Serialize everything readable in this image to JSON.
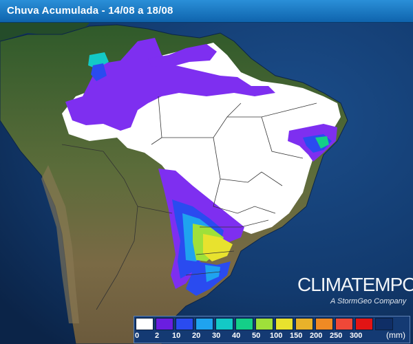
{
  "header": {
    "title": "Chuva Acumulada - 14/08 a 18/08"
  },
  "brand": {
    "name": "CLIMATEMPO",
    "tagline": "A StormGeo Company"
  },
  "legend": {
    "unit": "(mm)",
    "ticks": [
      "0",
      "2",
      "10",
      "20",
      "30",
      "40",
      "50",
      "100",
      "150",
      "200",
      "250",
      "300"
    ],
    "colors": [
      "#ffffff",
      "#6a1ee0",
      "#2a4bf0",
      "#1fa3ef",
      "#13c9c6",
      "#14cf88",
      "#9fe03a",
      "#e8e22e",
      "#e8b22a",
      "#ef8a24",
      "#ef4838",
      "#e21414",
      "#0f2e66"
    ]
  },
  "map": {
    "rain_colors": {
      "white": "#ffffff",
      "purple": "#7e2ff0",
      "blue": "#2a4bf0",
      "cyan": "#1fa3ef",
      "teal": "#13c9c6",
      "green": "#14cf88",
      "lime": "#9fe03a",
      "yellow": "#e8e22e"
    }
  }
}
